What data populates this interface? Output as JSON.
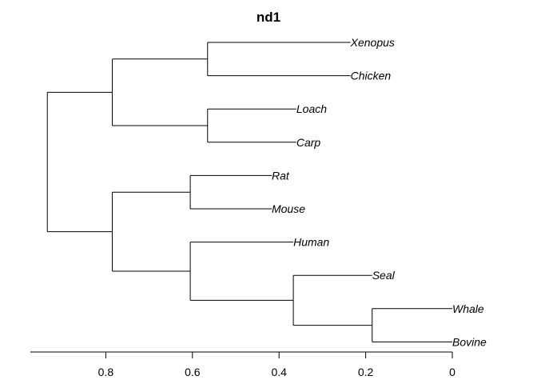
{
  "title": "nd1",
  "axis": {
    "reversed": true,
    "range": [
      0.97,
      0
    ],
    "ticks": [
      {
        "value": 0.8,
        "label": "0.8"
      },
      {
        "value": 0.6,
        "label": "0.6"
      },
      {
        "value": 0.4,
        "label": "0.4"
      },
      {
        "value": 0.2,
        "label": "0.2"
      },
      {
        "value": 0,
        "label": "0"
      }
    ]
  },
  "tree": {
    "height": 0.935,
    "children": [
      {
        "height": 0.785,
        "children": [
          {
            "height": 0.565,
            "children": [
              {
                "name": "Xenopus",
                "height": 0.235
              },
              {
                "name": "Chicken",
                "height": 0.235
              }
            ]
          },
          {
            "height": 0.565,
            "children": [
              {
                "name": "Loach",
                "height": 0.36
              },
              {
                "name": "Carp",
                "height": 0.36
              }
            ]
          }
        ]
      },
      {
        "height": 0.785,
        "children": [
          {
            "height": 0.605,
            "children": [
              {
                "name": "Rat",
                "height": 0.417
              },
              {
                "name": "Mouse",
                "height": 0.417
              }
            ]
          },
          {
            "height": 0.605,
            "children": [
              {
                "name": "Human",
                "height": 0.367
              },
              {
                "height": 0.367,
                "children": [
                  {
                    "name": "Seal",
                    "height": 0.185
                  },
                  {
                    "height": 0.185,
                    "children": [
                      {
                        "name": "Whale",
                        "height": 0
                      },
                      {
                        "name": "Bovine",
                        "height": 0
                      }
                    ]
                  }
                ]
              }
            ]
          }
        ]
      }
    ]
  }
}
